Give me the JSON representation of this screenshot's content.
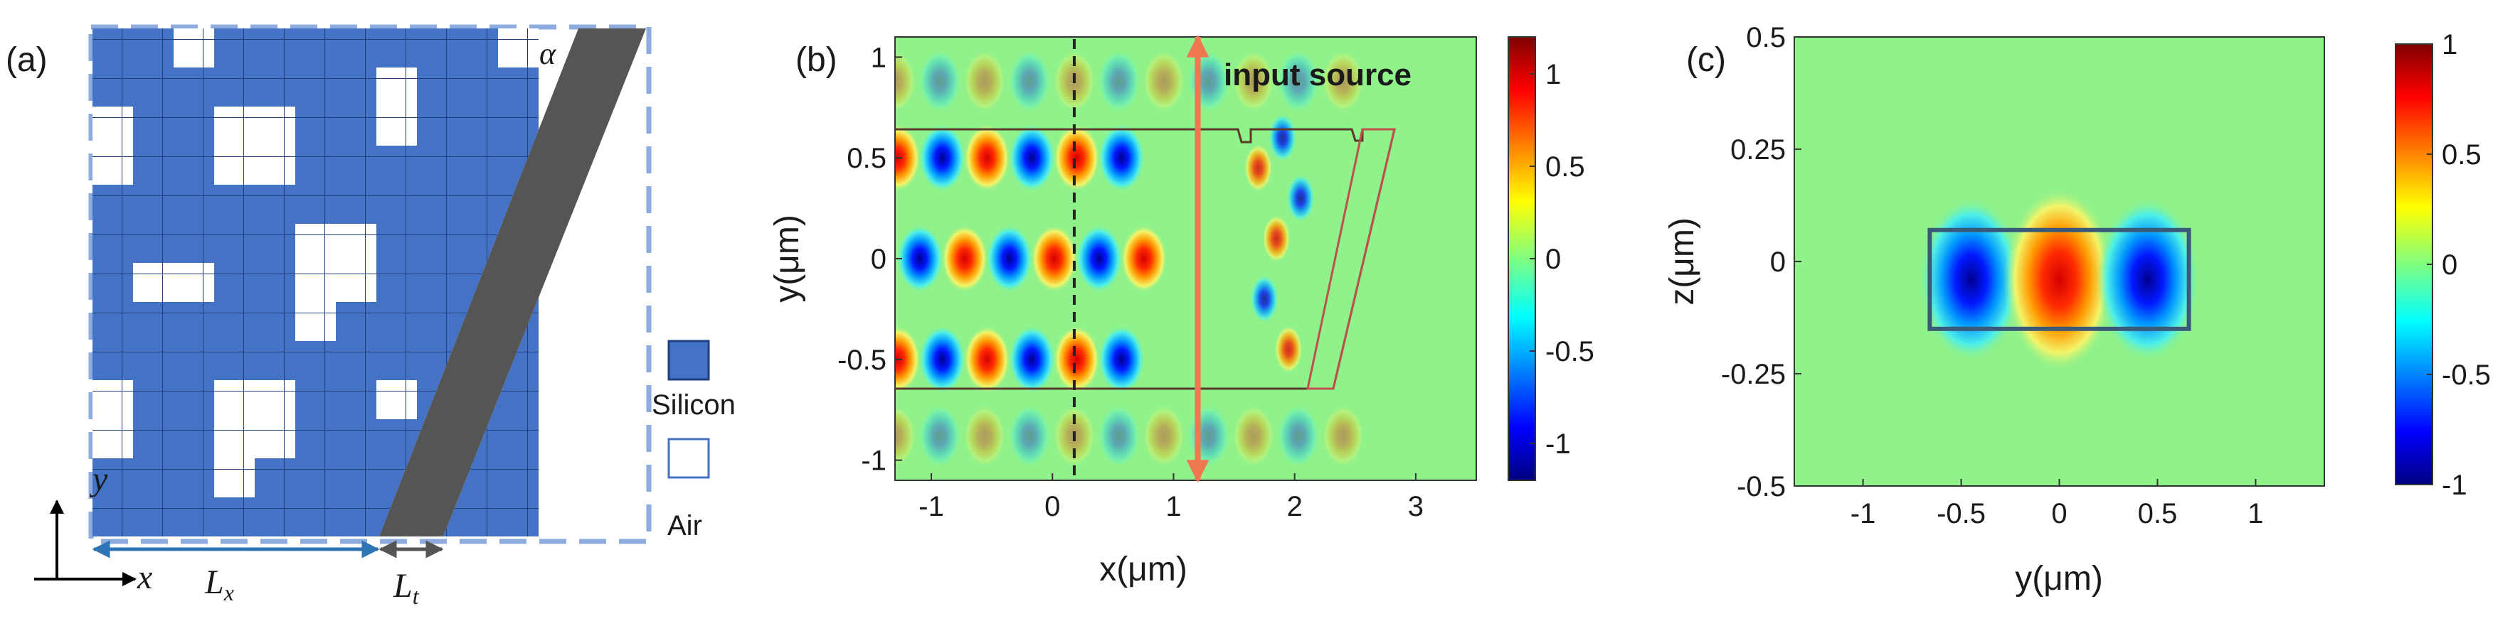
{
  "figure": {
    "panel_a": {
      "label": "(a)",
      "alpha_label": "α",
      "x_axis": "x",
      "y_axis": "y",
      "dim_Lx": "L",
      "dim_Lx_sub": "x",
      "dim_Lt": "L",
      "dim_Lt_sub": "t",
      "legend": [
        {
          "label": "Silicon",
          "color": "#4472c4"
        },
        {
          "label": "Air",
          "color": "#ffffff"
        }
      ],
      "colors": {
        "silicon": "#4472c4",
        "taper": "#555555",
        "dashed_box": "#8faadc",
        "arrow": "#2e75b6"
      },
      "grid": {
        "rows": 13,
        "cols": 11,
        "air_cells": [
          [
            0,
            2
          ],
          [
            0,
            10
          ],
          [
            1,
            7
          ],
          [
            2,
            0
          ],
          [
            2,
            3
          ],
          [
            2,
            4
          ],
          [
            2,
            7
          ],
          [
            3,
            0
          ],
          [
            3,
            3
          ],
          [
            3,
            4
          ],
          [
            5,
            5
          ],
          [
            5,
            6
          ],
          [
            6,
            1
          ],
          [
            6,
            2
          ],
          [
            6,
            5
          ],
          [
            6,
            6
          ],
          [
            7,
            5
          ],
          [
            9,
            0
          ],
          [
            9,
            3
          ],
          [
            9,
            4
          ],
          [
            9,
            7
          ],
          [
            10,
            0
          ],
          [
            10,
            3
          ],
          [
            10,
            4
          ],
          [
            11,
            3
          ]
        ]
      }
    },
    "panel_b": {
      "label": "(b)",
      "xlabel": "x(μm)",
      "ylabel": "y(μm)",
      "annotation": "input source",
      "annotation_color": "#f07850",
      "colorbar_ticks": [
        "1",
        "0.5",
        "0",
        "-0.5",
        "-1"
      ]
    },
    "panel_c": {
      "label": "(c)",
      "xlabel": "y(μm)",
      "ylabel": "z(μm)",
      "colorbar_ticks": [
        "1",
        "0.5",
        "0",
        "-0.5",
        "-1"
      ]
    }
  },
  "chart_data": [
    {
      "type": "heatmap",
      "panel": "(b)",
      "title": "",
      "xlabel": "x(μm)",
      "ylabel": "y(μm)",
      "xlim": [
        -1.3,
        3.5
      ],
      "ylim": [
        -1.1,
        1.1
      ],
      "xticks": [
        -1,
        0,
        1,
        2,
        3
      ],
      "xtick_labels": [
        "-1",
        "0",
        "1",
        "2",
        "3"
      ],
      "yticks": [
        1,
        0.5,
        0,
        -0.5,
        -1
      ],
      "ytick_labels": [
        "1",
        "0.5",
        "0",
        "-0.5",
        "-1"
      ],
      "colorbar": {
        "min": -1.2,
        "max": 1.2,
        "ticks": [
          1,
          0.5,
          0,
          -0.5,
          -1
        ]
      },
      "waveguide_y_range": [
        -0.65,
        0.65
      ],
      "waveguide_x_end": 1.5,
      "taper_x_range": [
        2.0,
        2.7
      ],
      "monitor_line_x": 0.18,
      "source_line_x": 1.2,
      "annotation": "input source",
      "field_peaks_y": [
        0.5,
        0.0,
        -0.5
      ],
      "field_period_x": 0.37
    },
    {
      "type": "heatmap",
      "panel": "(c)",
      "title": "",
      "xlabel": "y(μm)",
      "ylabel": "z(μm)",
      "xlim": [
        -1.35,
        1.35
      ],
      "ylim": [
        -0.5,
        0.5
      ],
      "xticks": [
        -1,
        -0.5,
        0,
        0.5,
        1
      ],
      "xtick_labels": [
        "-1",
        "-0.5",
        "0",
        "0.5",
        "1"
      ],
      "yticks": [
        0.5,
        0.25,
        0,
        -0.25,
        -0.5
      ],
      "ytick_labels": [
        "0.5",
        "0.25",
        "0",
        "-0.25",
        "-0.5"
      ],
      "colorbar": {
        "min": -1,
        "max": 1,
        "ticks": [
          1,
          0.5,
          0,
          -0.5,
          -1
        ]
      },
      "waveguide_y_range": [
        -0.66,
        0.66
      ],
      "waveguide_z_range": [
        -0.15,
        0.07
      ],
      "mode_lobes_y": [
        -0.45,
        0.0,
        0.45
      ],
      "mode_lobe_signs": [
        -1,
        1,
        -1
      ]
    }
  ]
}
